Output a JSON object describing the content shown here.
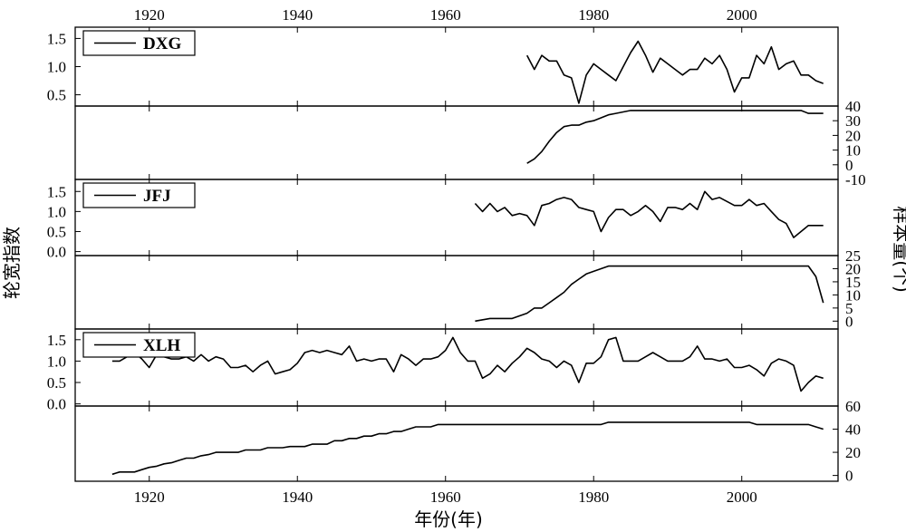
{
  "chart_data": {
    "type": "line",
    "xlabel": "年份(年)",
    "ylabel_left": "轮宽指数",
    "ylabel_right": "样本量(个)",
    "xlim": [
      1910,
      2013
    ],
    "xticks": [
      1920,
      1940,
      1960,
      1980,
      2000
    ],
    "panels": [
      {
        "id": "dxg-rwi",
        "axis": "left",
        "legend": "DXG",
        "ylim": [
          0.3,
          1.7
        ],
        "yticks": [
          0.5,
          1.0,
          1.5
        ],
        "x": [
          1971,
          1972,
          1973,
          1974,
          1975,
          1976,
          1977,
          1978,
          1979,
          1980,
          1981,
          1982,
          1983,
          1984,
          1985,
          1986,
          1987,
          1988,
          1989,
          1990,
          1991,
          1992,
          1993,
          1994,
          1995,
          1996,
          1997,
          1998,
          1999,
          2000,
          2001,
          2002,
          2003,
          2004,
          2005,
          2006,
          2007,
          2008,
          2009,
          2010,
          2011
        ],
        "y": [
          1.2,
          0.95,
          1.2,
          1.1,
          1.1,
          0.85,
          0.8,
          0.35,
          0.85,
          1.05,
          0.95,
          0.85,
          0.75,
          1.0,
          1.25,
          1.45,
          1.2,
          0.9,
          1.15,
          1.05,
          0.95,
          0.85,
          0.95,
          0.95,
          1.15,
          1.05,
          1.2,
          0.95,
          0.55,
          0.8,
          0.8,
          1.2,
          1.05,
          1.35,
          0.95,
          1.05,
          1.1,
          0.85,
          0.85,
          0.75,
          0.7
        ]
      },
      {
        "id": "dxg-n",
        "axis": "right",
        "ylim": [
          -10,
          40
        ],
        "yticks": [
          -10,
          0,
          10,
          20,
          30,
          40
        ],
        "x": [
          1971,
          1972,
          1973,
          1974,
          1975,
          1976,
          1977,
          1978,
          1979,
          1980,
          1981,
          1982,
          1983,
          1984,
          1985,
          1986,
          1987,
          2008,
          2009,
          2011
        ],
        "y": [
          1,
          4,
          9,
          16,
          22,
          26,
          27,
          27,
          29,
          30,
          32,
          34,
          35,
          36,
          37,
          37,
          37,
          37,
          35,
          35
        ]
      },
      {
        "id": "jfj-rwi",
        "axis": "left",
        "legend": "JFJ",
        "ylim": [
          -0.1,
          1.8
        ],
        "yticks": [
          0.0,
          0.5,
          1.0,
          1.5
        ],
        "x": [
          1964,
          1965,
          1966,
          1967,
          1968,
          1969,
          1970,
          1971,
          1972,
          1973,
          1974,
          1975,
          1976,
          1977,
          1978,
          1979,
          1980,
          1981,
          1982,
          1983,
          1984,
          1985,
          1986,
          1987,
          1988,
          1989,
          1990,
          1991,
          1992,
          1993,
          1994,
          1995,
          1996,
          1997,
          1998,
          1999,
          2000,
          2001,
          2002,
          2003,
          2004,
          2005,
          2006,
          2007,
          2008,
          2009,
          2010,
          2011
        ],
        "y": [
          1.2,
          1.0,
          1.2,
          1.0,
          1.1,
          0.9,
          0.95,
          0.9,
          0.65,
          1.15,
          1.2,
          1.3,
          1.35,
          1.3,
          1.1,
          1.05,
          1.0,
          0.5,
          0.85,
          1.05,
          1.05,
          0.9,
          1.0,
          1.15,
          1.0,
          0.75,
          1.1,
          1.1,
          1.05,
          1.2,
          1.05,
          1.5,
          1.3,
          1.35,
          1.25,
          1.15,
          1.15,
          1.3,
          1.15,
          1.2,
          1.0,
          0.8,
          0.7,
          0.35,
          0.5,
          0.65,
          0.65,
          0.65
        ]
      },
      {
        "id": "jfj-n",
        "axis": "right",
        "ylim": [
          -3,
          25
        ],
        "yticks": [
          0,
          5,
          10,
          15,
          20,
          25
        ],
        "x": [
          1964,
          1966,
          1967,
          1968,
          1969,
          1970,
          1971,
          1972,
          1973,
          1974,
          1975,
          1976,
          1977,
          1978,
          1979,
          1980,
          1981,
          1982,
          1983,
          1984,
          2009,
          2010,
          2011
        ],
        "y": [
          0,
          1,
          1,
          1,
          1,
          2,
          3,
          5,
          5,
          7,
          9,
          11,
          14,
          16,
          18,
          19,
          20,
          21,
          21,
          21,
          21,
          17,
          7
        ]
      },
      {
        "id": "xlh-rwi",
        "axis": "left",
        "legend": "XLH",
        "ylim": [
          -0.05,
          1.75
        ],
        "yticks": [
          0.0,
          0.5,
          1.0,
          1.5
        ],
        "x": [
          1915,
          1916,
          1917,
          1918,
          1919,
          1920,
          1921,
          1922,
          1923,
          1924,
          1925,
          1926,
          1927,
          1928,
          1929,
          1930,
          1931,
          1932,
          1933,
          1934,
          1935,
          1936,
          1937,
          1938,
          1939,
          1940,
          1941,
          1942,
          1943,
          1944,
          1945,
          1946,
          1947,
          1948,
          1949,
          1950,
          1951,
          1952,
          1953,
          1954,
          1955,
          1956,
          1957,
          1958,
          1959,
          1960,
          1961,
          1962,
          1963,
          1964,
          1965,
          1966,
          1967,
          1968,
          1969,
          1970,
          1971,
          1972,
          1973,
          1974,
          1975,
          1976,
          1977,
          1978,
          1979,
          1980,
          1981,
          1982,
          1983,
          1984,
          1985,
          1986,
          1987,
          1988,
          1989,
          1990,
          1991,
          1992,
          1993,
          1994,
          1995,
          1996,
          1997,
          1998,
          1999,
          2000,
          2001,
          2002,
          2003,
          2004,
          2005,
          2006,
          2007,
          2008,
          2009,
          2010,
          2011
        ],
        "y": [
          1.0,
          1.0,
          1.1,
          1.2,
          1.05,
          0.85,
          1.15,
          1.1,
          1.05,
          1.05,
          1.1,
          1.0,
          1.15,
          1.0,
          1.1,
          1.05,
          0.85,
          0.85,
          0.9,
          0.75,
          0.9,
          1.0,
          0.7,
          0.75,
          0.8,
          0.95,
          1.2,
          1.25,
          1.2,
          1.25,
          1.2,
          1.15,
          1.35,
          1.0,
          1.05,
          1.0,
          1.05,
          1.05,
          0.75,
          1.15,
          1.05,
          0.9,
          1.05,
          1.05,
          1.1,
          1.25,
          1.55,
          1.2,
          1.0,
          1.0,
          0.6,
          0.7,
          0.9,
          0.75,
          0.95,
          1.1,
          1.3,
          1.2,
          1.05,
          1.0,
          0.85,
          1.0,
          0.9,
          0.5,
          0.95,
          0.95,
          1.1,
          1.5,
          1.55,
          1.0,
          1.0,
          1.0,
          1.1,
          1.2,
          1.1,
          1.0,
          1.0,
          1.0,
          1.1,
          1.35,
          1.05,
          1.05,
          1.0,
          1.05,
          0.85,
          0.85,
          0.9,
          0.8,
          0.65,
          0.95,
          1.05,
          1.0,
          0.9,
          0.3,
          0.5,
          0.65,
          0.6
        ]
      },
      {
        "id": "xlh-n",
        "axis": "right",
        "ylim": [
          -5,
          60
        ],
        "yticks": [
          0,
          20,
          40,
          60
        ],
        "x": [
          1915,
          1916,
          1918,
          1919,
          1920,
          1921,
          1922,
          1923,
          1924,
          1925,
          1926,
          1927,
          1928,
          1929,
          1930,
          1931,
          1932,
          1933,
          1934,
          1935,
          1936,
          1937,
          1938,
          1939,
          1940,
          1941,
          1942,
          1943,
          1944,
          1945,
          1946,
          1947,
          1948,
          1949,
          1950,
          1951,
          1952,
          1953,
          1954,
          1955,
          1956,
          1957,
          1958,
          1959,
          1960,
          1965,
          1970,
          1975,
          1980,
          1981,
          1982,
          1985,
          1990,
          1995,
          2000,
          2001,
          2002,
          2005,
          2009,
          2010,
          2011
        ],
        "y": [
          1,
          3,
          3,
          5,
          7,
          8,
          10,
          11,
          13,
          15,
          15,
          17,
          18,
          20,
          20,
          20,
          20,
          22,
          22,
          22,
          24,
          24,
          24,
          25,
          25,
          25,
          27,
          27,
          27,
          30,
          30,
          32,
          32,
          34,
          34,
          36,
          36,
          38,
          38,
          40,
          42,
          42,
          42,
          44,
          44,
          44,
          44,
          44,
          44,
          44,
          46,
          46,
          46,
          46,
          46,
          46,
          44,
          44,
          44,
          42,
          40
        ]
      }
    ]
  }
}
